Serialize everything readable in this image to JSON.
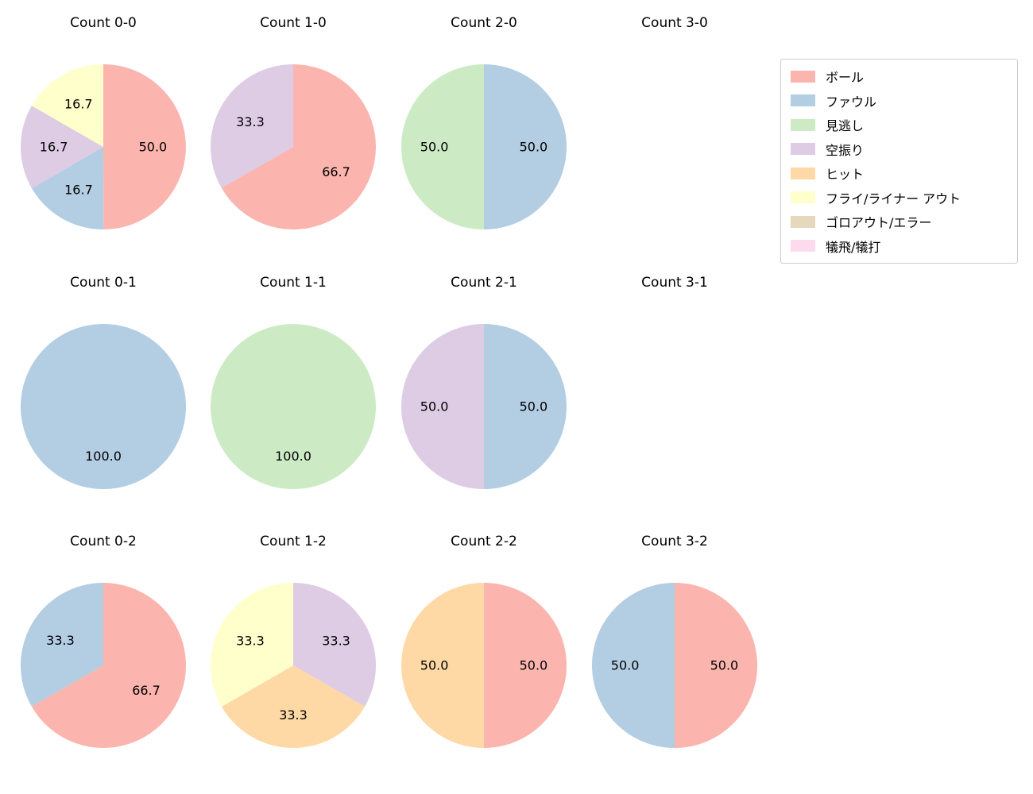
{
  "legend": {
    "position": "upper right",
    "items": [
      {
        "label": "ボール",
        "color": "#fbb4ae"
      },
      {
        "label": "ファウル",
        "color": "#b3cde3"
      },
      {
        "label": "見逃し",
        "color": "#ccebc5"
      },
      {
        "label": "空振り",
        "color": "#decbe4"
      },
      {
        "label": "ヒット",
        "color": "#fed9a6"
      },
      {
        "label": "フライ/ライナー アウト",
        "color": "#ffffcc"
      },
      {
        "label": "ゴロアウト/エラー",
        "color": "#e5d8bd"
      },
      {
        "label": "犠飛/犠打",
        "color": "#fddaec"
      }
    ]
  },
  "chart_data": [
    {
      "type": "pie",
      "title": "Count 0-0",
      "start_angle": "top",
      "direction": "clockwise",
      "slices": [
        {
          "label": "ボール",
          "value": 50.0,
          "color": "#fbb4ae"
        },
        {
          "label": "ファウル",
          "value": 16.7,
          "color": "#b3cde3"
        },
        {
          "label": "空振り",
          "value": 16.7,
          "color": "#decbe4"
        },
        {
          "label": "フライ/ライナー アウト",
          "value": 16.7,
          "color": "#ffffcc"
        }
      ]
    },
    {
      "type": "pie",
      "title": "Count 1-0",
      "start_angle": "top",
      "direction": "clockwise",
      "slices": [
        {
          "label": "ボール",
          "value": 66.7,
          "color": "#fbb4ae"
        },
        {
          "label": "空振り",
          "value": 33.3,
          "color": "#decbe4"
        }
      ]
    },
    {
      "type": "pie",
      "title": "Count 2-0",
      "start_angle": "top",
      "direction": "clockwise",
      "slices": [
        {
          "label": "ファウル",
          "value": 50.0,
          "color": "#b3cde3"
        },
        {
          "label": "見逃し",
          "value": 50.0,
          "color": "#ccebc5"
        }
      ]
    },
    {
      "type": "pie",
      "title": "Count 3-0",
      "start_angle": "top",
      "direction": "clockwise",
      "slices": []
    },
    {
      "type": "pie",
      "title": "Count 0-1",
      "start_angle": "top",
      "direction": "clockwise",
      "slices": [
        {
          "label": "ファウル",
          "value": 100.0,
          "color": "#b3cde3"
        }
      ]
    },
    {
      "type": "pie",
      "title": "Count 1-1",
      "start_angle": "top",
      "direction": "clockwise",
      "slices": [
        {
          "label": "見逃し",
          "value": 100.0,
          "color": "#ccebc5"
        }
      ]
    },
    {
      "type": "pie",
      "title": "Count 2-1",
      "start_angle": "top",
      "direction": "clockwise",
      "slices": [
        {
          "label": "ファウル",
          "value": 50.0,
          "color": "#b3cde3"
        },
        {
          "label": "空振り",
          "value": 50.0,
          "color": "#decbe4"
        }
      ]
    },
    {
      "type": "pie",
      "title": "Count 3-1",
      "start_angle": "top",
      "direction": "clockwise",
      "slices": []
    },
    {
      "type": "pie",
      "title": "Count 0-2",
      "start_angle": "top",
      "direction": "clockwise",
      "slices": [
        {
          "label": "ボール",
          "value": 66.7,
          "color": "#fbb4ae"
        },
        {
          "label": "ファウル",
          "value": 33.3,
          "color": "#b3cde3"
        }
      ]
    },
    {
      "type": "pie",
      "title": "Count 1-2",
      "start_angle": "top",
      "direction": "clockwise",
      "slices": [
        {
          "label": "空振り",
          "value": 33.3,
          "color": "#decbe4"
        },
        {
          "label": "ヒット",
          "value": 33.3,
          "color": "#fed9a6"
        },
        {
          "label": "フライ/ライナー アウト",
          "value": 33.3,
          "color": "#ffffcc"
        }
      ]
    },
    {
      "type": "pie",
      "title": "Count 2-2",
      "start_angle": "top",
      "direction": "clockwise",
      "slices": [
        {
          "label": "ボール",
          "value": 50.0,
          "color": "#fbb4ae"
        },
        {
          "label": "ヒット",
          "value": 50.0,
          "color": "#fed9a6"
        }
      ]
    },
    {
      "type": "pie",
      "title": "Count 3-2",
      "start_angle": "top",
      "direction": "clockwise",
      "slices": [
        {
          "label": "ボール",
          "value": 50.0,
          "color": "#fbb4ae"
        },
        {
          "label": "ファウル",
          "value": 50.0,
          "color": "#b3cde3"
        }
      ]
    }
  ]
}
